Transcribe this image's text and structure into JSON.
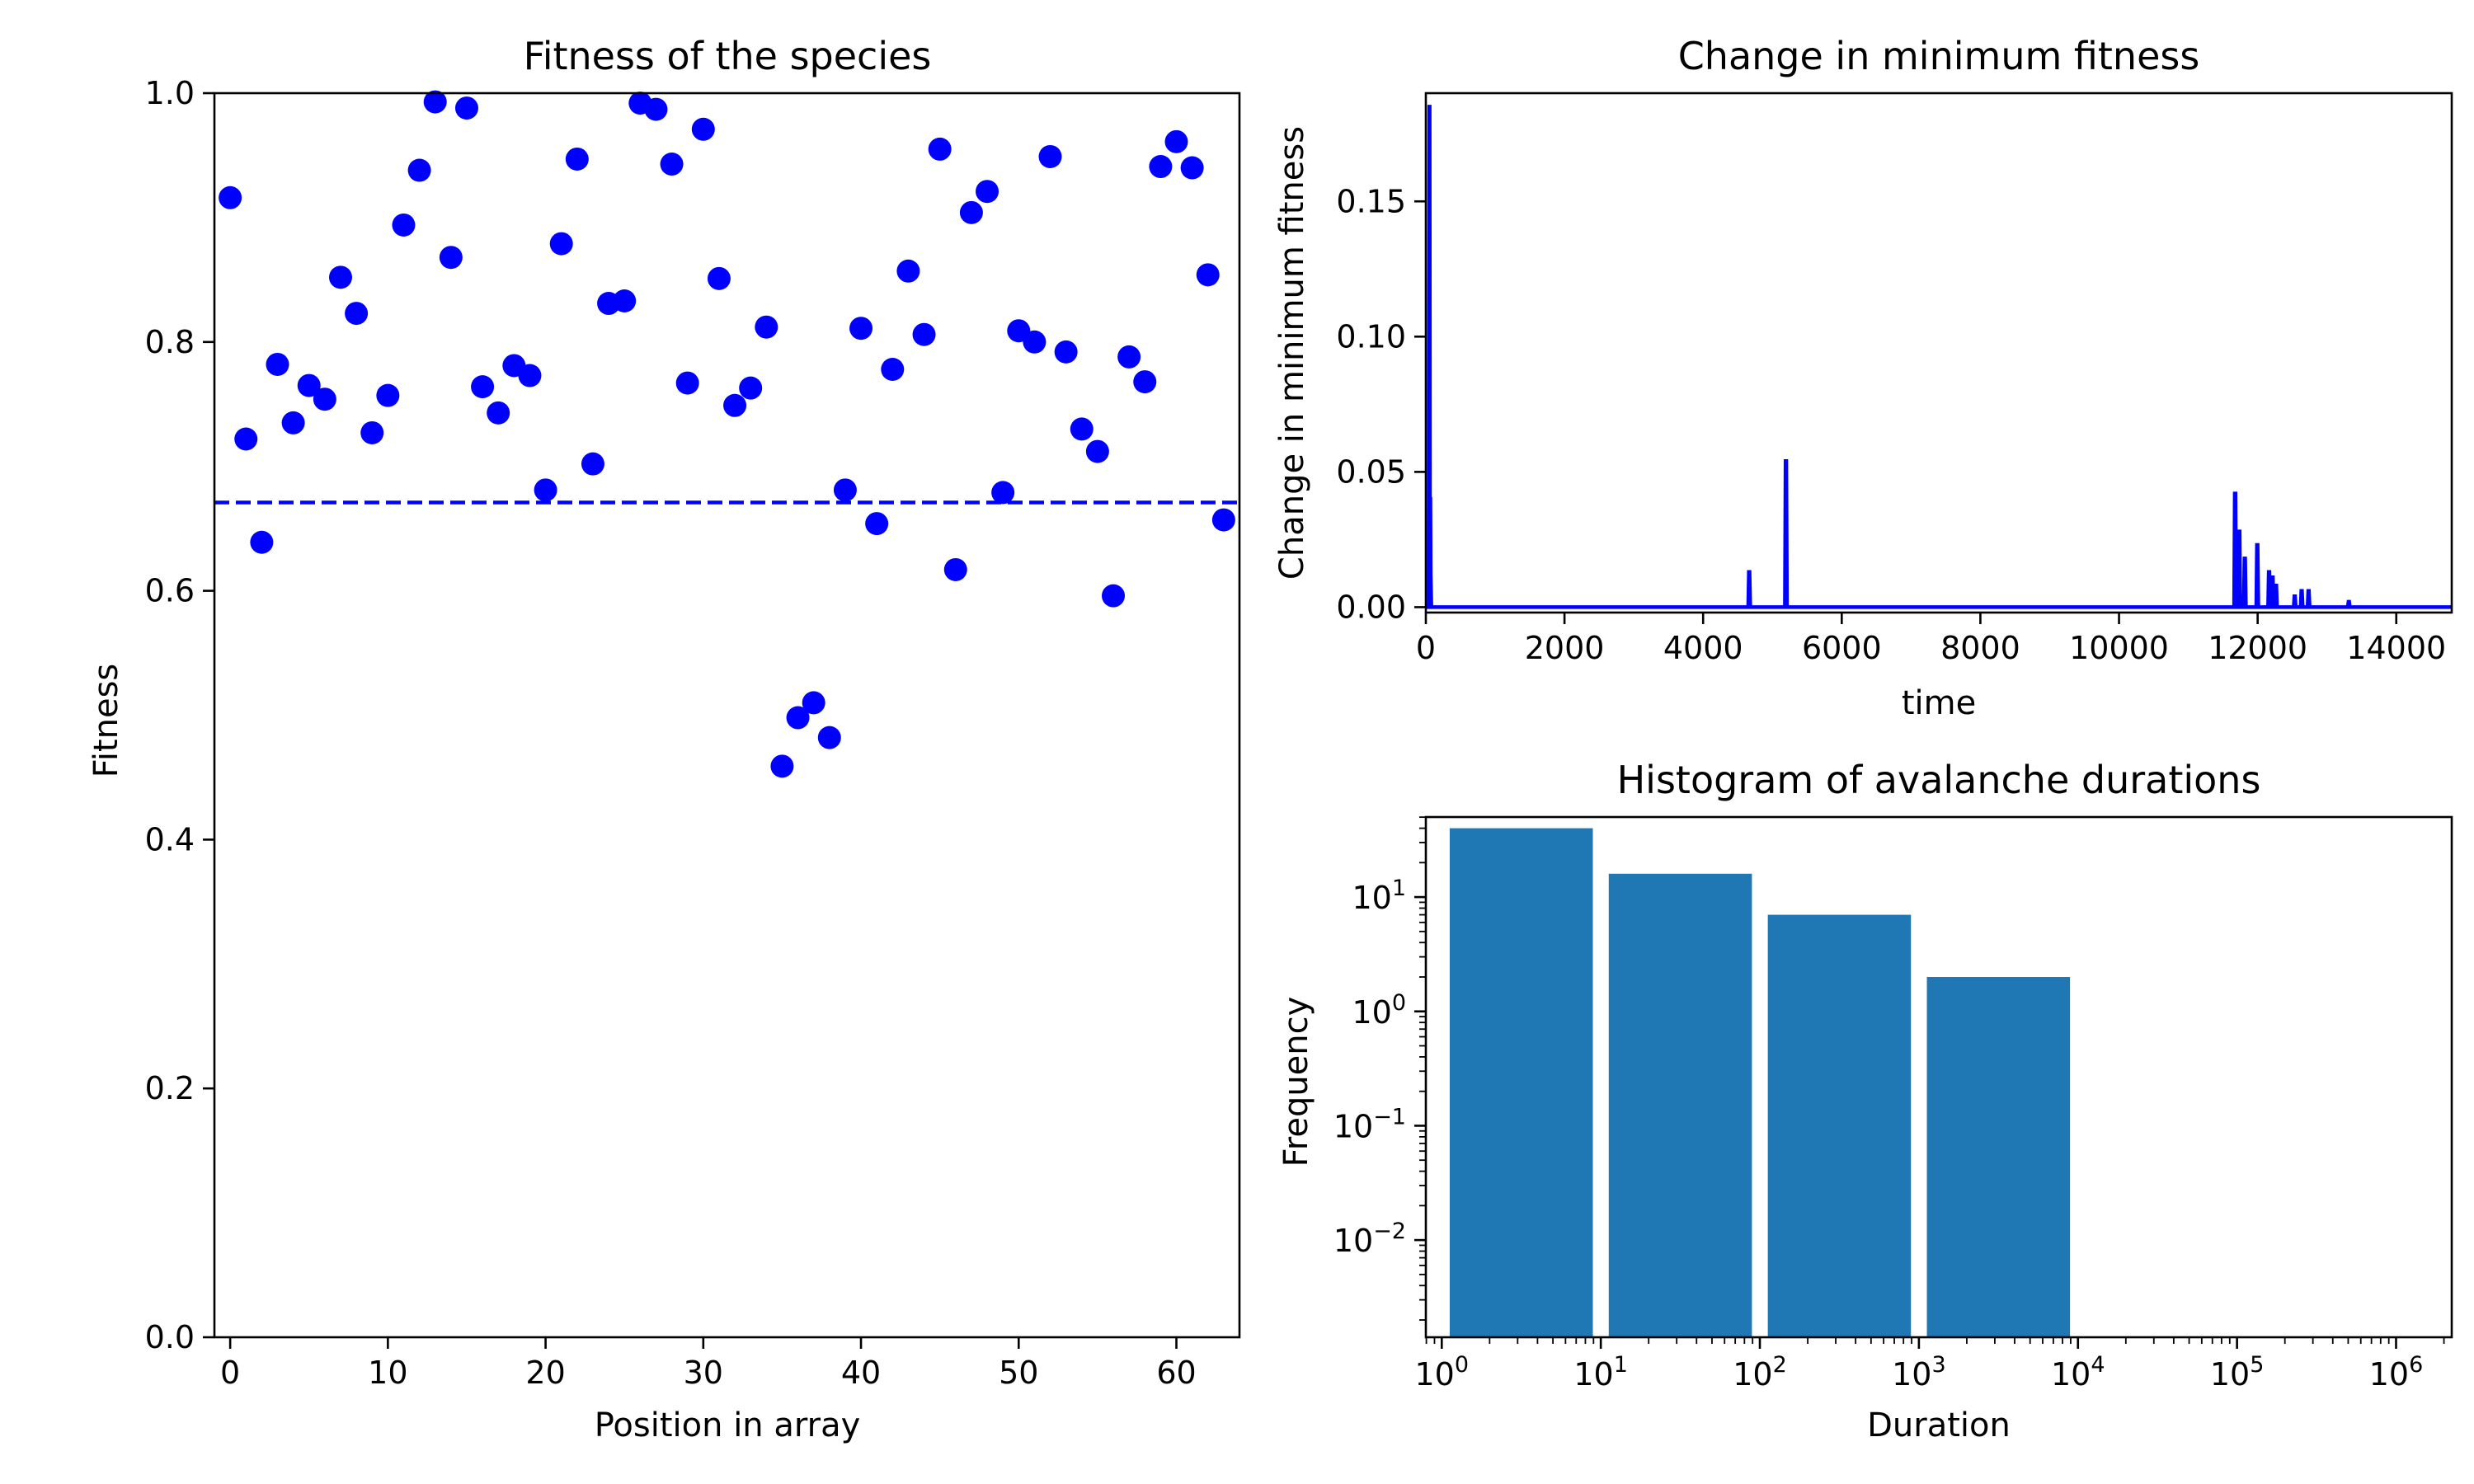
{
  "chart_data": [
    {
      "type": "scatter",
      "title": "Fitness of the species",
      "xlabel": "Position in array",
      "ylabel": "Fitness",
      "xlim": [
        -1,
        64
      ],
      "ylim": [
        0.0,
        1.0
      ],
      "xticks": [
        0,
        10,
        20,
        30,
        40,
        50,
        60
      ],
      "yticks": [
        0.0,
        0.2,
        0.4,
        0.6,
        0.8,
        1.0
      ],
      "xtick_labels": [
        "0",
        "10",
        "20",
        "30",
        "40",
        "50",
        "60"
      ],
      "ytick_labels": [
        "0.0",
        "0.2",
        "0.4",
        "0.6",
        "0.8",
        "1.0"
      ],
      "grid": false,
      "marker_color": "#0000ff",
      "threshold_line": {
        "y": 0.671,
        "style": "dashed",
        "color": "#0000ff"
      },
      "x": [
        0,
        1,
        2,
        3,
        4,
        5,
        6,
        7,
        8,
        9,
        10,
        11,
        12,
        13,
        14,
        15,
        16,
        17,
        18,
        19,
        20,
        21,
        22,
        23,
        24,
        25,
        26,
        27,
        28,
        29,
        30,
        31,
        32,
        33,
        34,
        35,
        36,
        37,
        38,
        39,
        40,
        41,
        42,
        43,
        44,
        45,
        46,
        47,
        48,
        49,
        50,
        51,
        52,
        53,
        54,
        55,
        56,
        57,
        58,
        59,
        60,
        61,
        62,
        63
      ],
      "y": [
        0.916,
        0.722,
        0.639,
        0.782,
        0.735,
        0.765,
        0.754,
        0.852,
        0.823,
        0.727,
        0.757,
        0.894,
        0.938,
        0.993,
        0.868,
        0.988,
        0.764,
        0.743,
        0.781,
        0.773,
        0.681,
        0.879,
        0.947,
        0.702,
        0.831,
        0.833,
        0.992,
        0.987,
        0.943,
        0.767,
        0.971,
        0.851,
        0.749,
        0.763,
        0.812,
        0.459,
        0.498,
        0.51,
        0.482,
        0.681,
        0.811,
        0.654,
        0.778,
        0.857,
        0.806,
        0.955,
        0.617,
        0.904,
        0.921,
        0.679,
        0.809,
        0.8,
        0.949,
        0.792,
        0.73,
        0.712,
        0.596,
        0.788,
        0.768,
        0.941,
        0.961,
        0.94,
        0.854,
        0.657
      ]
    },
    {
      "type": "line",
      "title": "Change in minimum fitness",
      "xlabel": "time",
      "ylabel": "Change in minimum fitness",
      "xlim": [
        0,
        14800
      ],
      "ylim": [
        -0.002,
        0.19
      ],
      "xticks": [
        0,
        2000,
        4000,
        6000,
        8000,
        10000,
        12000,
        14000
      ],
      "yticks": [
        0.0,
        0.05,
        0.1,
        0.15
      ],
      "xtick_labels": [
        "0",
        "2000",
        "4000",
        "6000",
        "8000",
        "10000",
        "12000",
        "14000"
      ],
      "ytick_labels": [
        "0.00",
        "0.05",
        "0.10",
        "0.15"
      ],
      "grid": false,
      "line_color": "#0000ff",
      "x": [
        0,
        40,
        50,
        55,
        60,
        65,
        70,
        80,
        90,
        4650,
        4660,
        4670,
        4680,
        5180,
        5190,
        5200,
        5210,
        11660,
        11670,
        11680,
        11690,
        11720,
        11730,
        11740,
        11750,
        11800,
        11810,
        11820,
        11830,
        11980,
        11990,
        12000,
        12010,
        12150,
        12160,
        12170,
        12180,
        12200,
        12210,
        12220,
        12230,
        12250,
        12260,
        12270,
        12280,
        12520,
        12530,
        12540,
        12550,
        12620,
        12630,
        12640,
        12650,
        12720,
        12730,
        12740,
        12750,
        13300,
        13310,
        13320,
        13330,
        14800
      ],
      "y": [
        0,
        0,
        0.185,
        0.185,
        0.04,
        0.04,
        0.012,
        0,
        0,
        0,
        0.013,
        0.013,
        0,
        0,
        0.054,
        0.054,
        0,
        0,
        0.042,
        0.042,
        0,
        0,
        0.028,
        0.028,
        0,
        0,
        0.018,
        0.018,
        0,
        0,
        0.023,
        0.023,
        0,
        0,
        0.013,
        0.013,
        0,
        0,
        0.011,
        0.011,
        0,
        0,
        0.008,
        0.008,
        0,
        0,
        0.004,
        0.004,
        0,
        0,
        0.006,
        0.006,
        0,
        0,
        0.006,
        0.006,
        0,
        0,
        0.002,
        0.002,
        0,
        0
      ]
    },
    {
      "type": "bar",
      "title": "Histogram of avalanche durations",
      "xlabel": "Duration",
      "ylabel": "Frequency",
      "xscale": "log",
      "yscale": "log",
      "xlim_decades": [
        -0.1,
        6.35
      ],
      "ylim_decades": [
        -2.85,
        1.7
      ],
      "xticks_exp": [
        0,
        1,
        2,
        3,
        4,
        5,
        6
      ],
      "yticks_exp": [
        -2,
        -1,
        0,
        1
      ],
      "tick_base": "10",
      "grid": false,
      "bar_color": "#1f77b4",
      "bins_decades": [
        [
          0.05,
          0.95
        ],
        [
          1.05,
          1.95
        ],
        [
          2.05,
          2.95
        ],
        [
          3.05,
          3.95
        ]
      ],
      "values": [
        40,
        16,
        7,
        2
      ]
    }
  ]
}
